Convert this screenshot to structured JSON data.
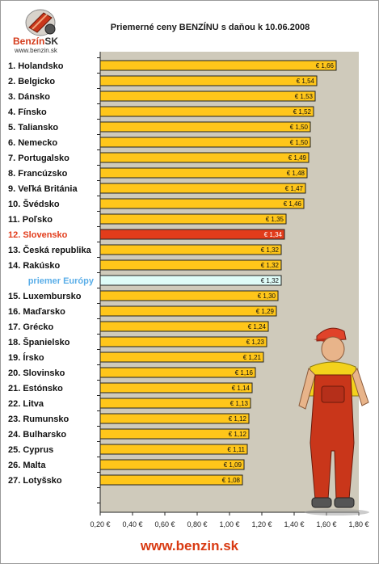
{
  "header": {
    "logo_brand": "Benzín",
    "logo_suffix": "SK",
    "logo_url": "www.benzin.sk"
  },
  "footer": {
    "url": "www.benzin.sk"
  },
  "chart_data": {
    "type": "bar",
    "orientation": "horizontal",
    "title": "Priemerné ceny BENZÍNU s daňou k 10.06.2008",
    "xlim": [
      0.2,
      1.8
    ],
    "x_ticks": [
      "0,20 €",
      "0,40 €",
      "0,60 €",
      "0,80 €",
      "1,00 €",
      "1,20 €",
      "1,40 €",
      "1,60 €",
      "1,80 €"
    ],
    "grid": false,
    "categories": [
      "1. Holandsko",
      "2. Belgicko",
      "3. Dánsko",
      "4. Fínsko",
      "5. Taliansko",
      "6. Nemecko",
      "7. Portugalsko",
      "8. Francúzsko",
      "9. Veľká Británia",
      "10. Švédsko",
      "11. Poľsko",
      "12. Slovensko",
      "13. Česká republika",
      "14. Rakúsko",
      "priemer Európy",
      "15. Luxembursko",
      "16. Maďarsko",
      "17. Grécko",
      "18. Španielsko",
      "19. Írsko",
      "20. Slovinsko",
      "21. Estónsko",
      "22. Litva",
      "23. Rumunsko",
      "24. Bulharsko",
      "25. Cyprus",
      "26. Malta",
      "27. Lotyšsko"
    ],
    "values": [
      1.66,
      1.54,
      1.53,
      1.52,
      1.5,
      1.5,
      1.49,
      1.48,
      1.47,
      1.46,
      1.35,
      1.34,
      1.32,
      1.32,
      1.32,
      1.3,
      1.29,
      1.24,
      1.23,
      1.21,
      1.16,
      1.14,
      1.13,
      1.12,
      1.12,
      1.11,
      1.09,
      1.08
    ],
    "value_labels": [
      "€ 1,66",
      "€ 1,54",
      "€ 1,53",
      "€ 1,52",
      "€ 1,50",
      "€ 1,50",
      "€ 1,49",
      "€ 1,48",
      "€ 1,47",
      "€ 1,46",
      "€ 1,35",
      "€ 1,34",
      "€ 1,32",
      "€ 1,32",
      "€ 1,32",
      "€ 1,30",
      "€ 1,29",
      "€ 1,24",
      "€ 1,23",
      "€ 1,21",
      "€ 1,16",
      "€ 1,14",
      "€ 1,13",
      "€ 1,12",
      "€ 1,12",
      "€ 1,11",
      "€ 1,09",
      "€ 1,08"
    ],
    "highlight": {
      "12. Slovensko": "slovakia",
      "priemer Európy": "average"
    },
    "colors": {
      "bar": "#ffc61a",
      "bar_border": "#222222",
      "slovakia_bar": "#e23c1b",
      "slovakia_label": "#e23c1b",
      "average_bar": "#dffcf8",
      "average_label": "#5aaee8",
      "plot_background": "#cfcabb"
    }
  }
}
